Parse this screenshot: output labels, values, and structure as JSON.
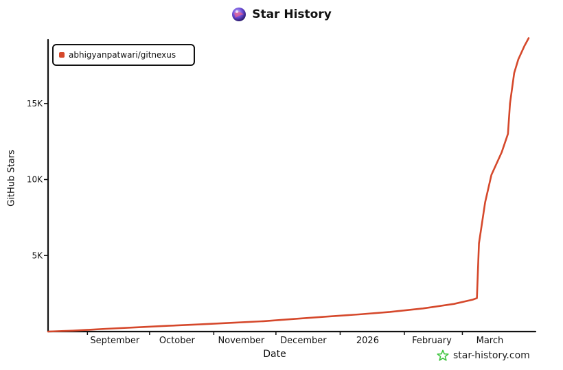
{
  "chart_data": {
    "type": "line",
    "title": "Star History",
    "xlabel": "Date",
    "ylabel": "GitHub Stars",
    "legend_position": "top-left",
    "grid": false,
    "x_ticks": [
      "September",
      "October",
      "November",
      "December",
      "2026",
      "February",
      "March"
    ],
    "y_ticks": [
      "5K",
      "10K",
      "15K"
    ],
    "ylim": [
      0,
      19500
    ],
    "series": [
      {
        "name": "abhigyanpatwari/gitnexus",
        "color": "#d5482b",
        "points": [
          [
            "2025-08-13",
            0
          ],
          [
            "2025-08-25",
            60
          ],
          [
            "2025-09-10",
            180
          ],
          [
            "2025-09-25",
            280
          ],
          [
            "2025-10-10",
            380
          ],
          [
            "2025-10-25",
            470
          ],
          [
            "2025-11-10",
            580
          ],
          [
            "2025-11-25",
            680
          ],
          [
            "2025-12-10",
            830
          ],
          [
            "2025-12-25",
            980
          ],
          [
            "2026-01-10",
            1130
          ],
          [
            "2026-01-25",
            1290
          ],
          [
            "2026-02-10",
            1520
          ],
          [
            "2026-02-25",
            1820
          ],
          [
            "2026-03-06",
            2100
          ],
          [
            "2026-03-08",
            2200
          ],
          [
            "2026-03-09",
            5800
          ],
          [
            "2026-03-12",
            8500
          ],
          [
            "2026-03-15",
            10300
          ],
          [
            "2026-03-20",
            11800
          ],
          [
            "2026-03-23",
            13000
          ],
          [
            "2026-03-24",
            15000
          ],
          [
            "2026-03-26",
            17000
          ],
          [
            "2026-03-28",
            17900
          ],
          [
            "2026-03-31",
            18800
          ],
          [
            "2026-04-02",
            19300
          ]
        ]
      }
    ]
  },
  "watermark": "star-history.com"
}
